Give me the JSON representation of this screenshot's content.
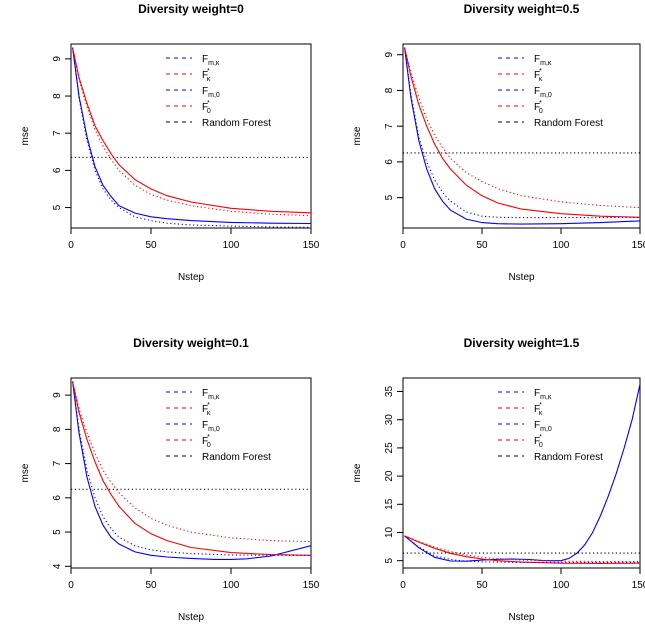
{
  "chart_data": [
    {
      "type": "line",
      "title": "Diversity weight=0",
      "xlabel": "Nstep",
      "ylabel": "mse",
      "xlim": [
        0,
        150
      ],
      "ylim": [
        4.45,
        9.4
      ],
      "xticks": [
        0,
        50,
        100,
        150
      ],
      "yticks": [
        5,
        6,
        7,
        8,
        9
      ],
      "legend": {
        "position": "top-right"
      },
      "series": [
        {
          "name": "F_{m,κ}",
          "color": "#0000ff",
          "dash": "solid",
          "x": [
            1,
            5,
            10,
            15,
            20,
            25,
            30,
            40,
            50,
            60,
            75,
            100,
            125,
            150
          ],
          "y": [
            9.3,
            8.0,
            6.9,
            6.1,
            5.6,
            5.3,
            5.05,
            4.85,
            4.75,
            4.7,
            4.65,
            4.6,
            4.58,
            4.57
          ]
        },
        {
          "name": "F*_κ",
          "color": "#ff0000",
          "dash": "solid",
          "x": [
            1,
            5,
            10,
            15,
            20,
            25,
            30,
            40,
            50,
            60,
            75,
            100,
            125,
            150
          ],
          "y": [
            9.3,
            8.5,
            7.8,
            7.2,
            6.8,
            6.45,
            6.15,
            5.75,
            5.5,
            5.32,
            5.15,
            4.98,
            4.9,
            4.86
          ]
        },
        {
          "name": "F_{m,0}",
          "color": "#0000ff",
          "dash": "dotted",
          "x": [
            1,
            5,
            10,
            15,
            20,
            25,
            30,
            40,
            50,
            60,
            75,
            100,
            125,
            150
          ],
          "y": [
            9.3,
            7.95,
            6.8,
            6.0,
            5.5,
            5.2,
            5.0,
            4.75,
            4.65,
            4.58,
            4.53,
            4.5,
            4.48,
            4.47
          ]
        },
        {
          "name": "F*_0",
          "color": "#ff0000",
          "dash": "dotted",
          "x": [
            1,
            5,
            10,
            15,
            20,
            25,
            30,
            40,
            50,
            60,
            75,
            100,
            125,
            150
          ],
          "y": [
            9.3,
            8.45,
            7.7,
            7.1,
            6.65,
            6.3,
            6.0,
            5.6,
            5.35,
            5.2,
            5.05,
            4.9,
            4.82,
            4.78
          ]
        },
        {
          "name": "Random Forest",
          "color": "#000000",
          "dash": "dotted",
          "hline": 6.35
        }
      ]
    },
    {
      "type": "line",
      "title": "Diversity weight=0.5",
      "xlabel": "Nstep",
      "ylabel": "mse",
      "xlim": [
        0,
        150
      ],
      "ylim": [
        4.15,
        9.3
      ],
      "xticks": [
        0,
        50,
        100,
        150
      ],
      "yticks": [
        5,
        6,
        7,
        8,
        9
      ],
      "legend": {
        "position": "top-right"
      },
      "series": [
        {
          "name": "F_{m,κ}",
          "color": "#0000ff",
          "dash": "solid",
          "x": [
            1,
            5,
            10,
            15,
            20,
            25,
            30,
            40,
            50,
            60,
            75,
            100,
            125,
            150
          ],
          "y": [
            9.2,
            7.8,
            6.6,
            5.8,
            5.25,
            4.9,
            4.65,
            4.4,
            4.3,
            4.27,
            4.26,
            4.27,
            4.3,
            4.35
          ]
        },
        {
          "name": "F*_κ",
          "color": "#ff0000",
          "dash": "solid",
          "x": [
            1,
            5,
            10,
            15,
            20,
            25,
            30,
            40,
            50,
            60,
            75,
            100,
            125,
            150
          ],
          "y": [
            9.2,
            8.4,
            7.6,
            7.0,
            6.5,
            6.1,
            5.8,
            5.35,
            5.05,
            4.85,
            4.68,
            4.55,
            4.48,
            4.45
          ]
        },
        {
          "name": "F_{m,0}",
          "color": "#0000ff",
          "dash": "dotted",
          "x": [
            1,
            5,
            10,
            15,
            20,
            25,
            30,
            40,
            50,
            60,
            75,
            100,
            125,
            150
          ],
          "y": [
            9.2,
            7.9,
            6.7,
            6.0,
            5.5,
            5.15,
            4.9,
            4.6,
            4.48,
            4.45,
            4.44,
            4.44,
            4.44,
            4.45
          ]
        },
        {
          "name": "F*_0",
          "color": "#ff0000",
          "dash": "dotted",
          "x": [
            1,
            5,
            10,
            15,
            20,
            25,
            30,
            40,
            50,
            60,
            75,
            100,
            125,
            150
          ],
          "y": [
            9.2,
            8.5,
            7.8,
            7.2,
            6.75,
            6.4,
            6.1,
            5.7,
            5.45,
            5.25,
            5.05,
            4.88,
            4.78,
            4.72
          ]
        },
        {
          "name": "Random Forest",
          "color": "#000000",
          "dash": "dotted",
          "hline": 6.25
        }
      ]
    },
    {
      "type": "line",
      "title": "Diversity weight=0.1",
      "xlabel": "Nstep",
      "ylabel": "mse",
      "xlim": [
        0,
        150
      ],
      "ylim": [
        3.95,
        9.5
      ],
      "xticks": [
        0,
        50,
        100,
        150
      ],
      "yticks": [
        4,
        5,
        6,
        7,
        8,
        9
      ],
      "legend": {
        "position": "top-right"
      },
      "series": [
        {
          "name": "F_{m,κ}",
          "color": "#0000ff",
          "dash": "solid",
          "x": [
            1,
            5,
            10,
            15,
            20,
            25,
            30,
            40,
            50,
            60,
            75,
            90,
            100,
            110,
            125,
            150
          ],
          "y": [
            9.4,
            7.9,
            6.6,
            5.75,
            5.2,
            4.85,
            4.65,
            4.42,
            4.32,
            4.27,
            4.23,
            4.2,
            4.2,
            4.22,
            4.3,
            4.6
          ]
        },
        {
          "name": "F*_κ",
          "color": "#ff0000",
          "dash": "solid",
          "x": [
            1,
            5,
            10,
            15,
            20,
            25,
            30,
            40,
            50,
            60,
            75,
            100,
            125,
            150
          ],
          "y": [
            9.4,
            8.5,
            7.7,
            7.05,
            6.5,
            6.1,
            5.75,
            5.25,
            4.95,
            4.75,
            4.55,
            4.4,
            4.34,
            4.32
          ]
        },
        {
          "name": "F_{m,0}",
          "color": "#0000ff",
          "dash": "dotted",
          "x": [
            1,
            5,
            10,
            15,
            20,
            25,
            30,
            40,
            50,
            60,
            75,
            100,
            125,
            150
          ],
          "y": [
            9.4,
            8.0,
            6.8,
            6.0,
            5.45,
            5.1,
            4.85,
            4.6,
            4.48,
            4.42,
            4.37,
            4.33,
            4.32,
            4.32
          ]
        },
        {
          "name": "F*_0",
          "color": "#ff0000",
          "dash": "dotted",
          "x": [
            1,
            5,
            10,
            15,
            20,
            25,
            30,
            40,
            50,
            60,
            75,
            100,
            125,
            150
          ],
          "y": [
            9.4,
            8.6,
            7.9,
            7.3,
            6.8,
            6.45,
            6.15,
            5.7,
            5.4,
            5.2,
            5.0,
            4.83,
            4.75,
            4.72
          ]
        },
        {
          "name": "Random Forest",
          "color": "#000000",
          "dash": "dotted",
          "hline": 6.25
        }
      ]
    },
    {
      "type": "line",
      "title": "Diversity weight=1.5",
      "xlabel": "Nstep",
      "ylabel": "mse",
      "xlim": [
        0,
        150
      ],
      "ylim": [
        3.7,
        37.4
      ],
      "xticks": [
        0,
        50,
        100,
        150
      ],
      "yticks": [
        5,
        10,
        15,
        20,
        25,
        30,
        35
      ],
      "legend": {
        "position": "top-right"
      },
      "series": [
        {
          "name": "F_{m,κ}",
          "color": "#0000ff",
          "dash": "solid",
          "x": [
            1,
            10,
            20,
            30,
            40,
            50,
            60,
            70,
            80,
            90,
            100,
            105,
            110,
            115,
            120,
            125,
            130,
            135,
            140,
            145,
            150
          ],
          "y": [
            9.4,
            7.3,
            5.6,
            4.95,
            4.9,
            5.1,
            5.25,
            5.3,
            5.2,
            5.0,
            5.0,
            5.4,
            6.3,
            7.8,
            10.0,
            13.0,
            16.5,
            20.5,
            25.0,
            30.0,
            36.3
          ]
        },
        {
          "name": "F*_κ",
          "color": "#ff0000",
          "dash": "solid",
          "x": [
            1,
            10,
            20,
            30,
            40,
            50,
            60,
            75,
            100,
            125,
            150
          ],
          "y": [
            9.4,
            8.3,
            7.2,
            6.3,
            5.7,
            5.3,
            5.0,
            4.75,
            4.55,
            4.52,
            4.55
          ]
        },
        {
          "name": "F_{m,0}",
          "color": "#0000ff",
          "dash": "dotted",
          "x": [
            1,
            10,
            20,
            30,
            40,
            50,
            60,
            75,
            100,
            125,
            150
          ],
          "y": [
            9.4,
            7.4,
            5.9,
            5.2,
            4.9,
            4.8,
            4.75,
            4.7,
            4.7,
            4.7,
            4.7
          ]
        },
        {
          "name": "F*_0",
          "color": "#ff0000",
          "dash": "dotted",
          "x": [
            1,
            10,
            20,
            30,
            40,
            50,
            60,
            75,
            100,
            125,
            150
          ],
          "y": [
            9.4,
            8.4,
            7.4,
            6.6,
            6.0,
            5.6,
            5.35,
            5.1,
            4.9,
            4.85,
            4.85
          ]
        },
        {
          "name": "Random Forest",
          "color": "#000000",
          "dash": "dotted",
          "hline": 6.35
        }
      ]
    }
  ]
}
